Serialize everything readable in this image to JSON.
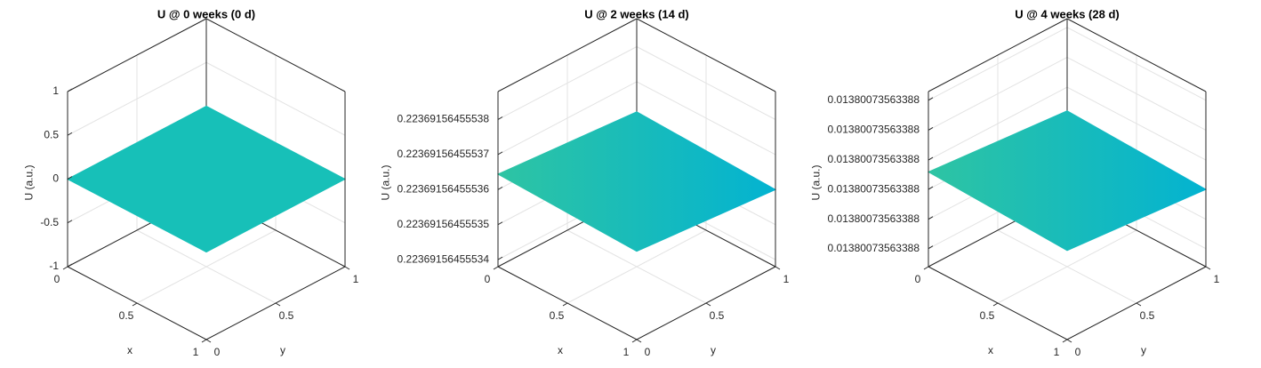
{
  "chart_data": [
    {
      "type": "surface",
      "title": "U @ 0 weeks (0 d)",
      "xlabel": "x",
      "ylabel": "y",
      "zlabel": "U (a.u.)",
      "x": [
        0,
        1
      ],
      "y": [
        0,
        1
      ],
      "z": [
        [
          0,
          0
        ],
        [
          0,
          0
        ]
      ],
      "color": "#17c0b8",
      "xlim": [
        0,
        1
      ],
      "ylim": [
        0,
        1
      ],
      "zlim": [
        -1,
        1
      ],
      "xticks": [
        0,
        0.5,
        1
      ],
      "yticks": [
        0,
        0.5,
        1
      ],
      "zticks": [
        -1,
        -0.5,
        0,
        0.5,
        1
      ],
      "grid": true
    },
    {
      "type": "surface",
      "title": "U @ 2 weeks (14 d)",
      "xlabel": "x",
      "ylabel": "y",
      "zlabel": "U (a.u.)",
      "x": [
        0,
        1
      ],
      "y": [
        0,
        1
      ],
      "z": [
        [
          0.2236915645553644,
          0.2236915645553614
        ],
        [
          0.2236915645553632,
          0.22369156455536
        ]
      ],
      "colormap": [
        "#2ec4a3",
        "#03b3d1"
      ],
      "xlim": [
        0,
        1
      ],
      "ylim": [
        0,
        1
      ],
      "zlim": [
        0.223691564555338,
        0.223691564555388
      ],
      "xticks": [
        0,
        0.5,
        1
      ],
      "yticks": [
        0,
        0.5,
        1
      ],
      "zticks": [
        0.22369156455534,
        0.22369156455535,
        0.22369156455536,
        0.22369156455537,
        0.22369156455538
      ],
      "grid": true
    },
    {
      "type": "surface",
      "title": "U @ 4 weeks (28 d)",
      "xlabel": "x",
      "ylabel": "y",
      "zlabel": "U (a.u.)",
      "x": [
        0,
        1
      ],
      "y": [
        0,
        1
      ],
      "z": [
        [
          0.01380073563388006,
          0.01380073563388002
        ],
        [
          0.01380073563388004,
          0.01380073563388
        ]
      ],
      "colormap": [
        "#2ec4a3",
        "#03b3d1"
      ],
      "xlim": [
        0,
        1
      ],
      "ylim": [
        0,
        1
      ],
      "zlim": [
        0.01380073563387974,
        0.01380073563388033
      ],
      "xticks": [
        0,
        0.5,
        1
      ],
      "yticks": [
        0,
        0.5,
        1
      ],
      "zticks": [
        {
          "value": 0.0138007356338798,
          "label": "0.01380073563388"
        },
        {
          "value": 0.0138007356338799,
          "label": "0.01380073563388"
        },
        {
          "value": 0.01380073563388,
          "label": "0.01380073563388"
        },
        {
          "value": 0.0138007356338801,
          "label": "0.01380073563388"
        },
        {
          "value": 0.0138007356338802,
          "label": "0.01380073563388"
        },
        {
          "value": 0.0138007356338803,
          "label": "0.01380073563388"
        }
      ],
      "grid": true
    }
  ]
}
